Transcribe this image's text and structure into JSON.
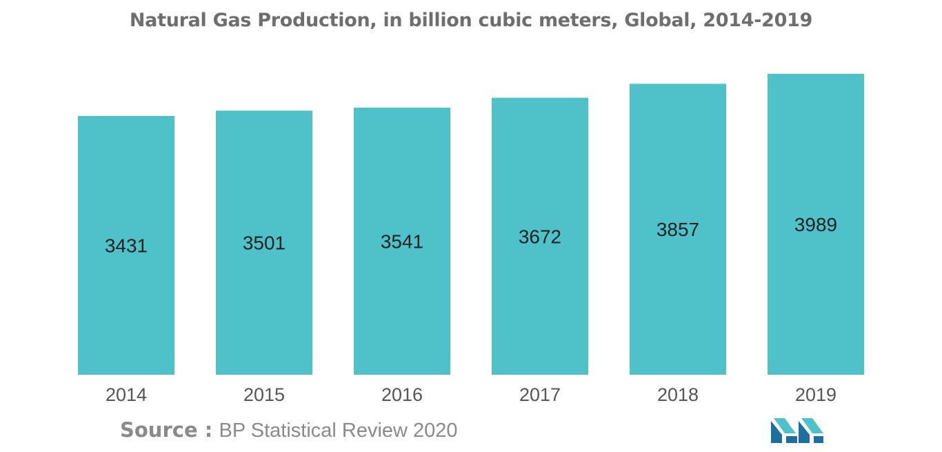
{
  "chart_data": {
    "type": "bar",
    "title": "Natural Gas Production, in billion cubic meters, Global, 2014-2019",
    "categories": [
      "2014",
      "2015",
      "2016",
      "2017",
      "2018",
      "2019"
    ],
    "values": [
      3431,
      3501,
      3541,
      3672,
      3857,
      3989
    ],
    "xlabel": "",
    "ylabel": "",
    "ylim": [
      0,
      4000
    ],
    "grid": false,
    "legend": "none",
    "data_labels": "inside-bar",
    "colors": {
      "bar": "#4fc1c9",
      "label": "#222222",
      "tick": "#555555"
    }
  },
  "source": {
    "label": "Source :",
    "text": "BP Statistical Review 2020"
  },
  "logo": {
    "icon": "mordor-intelligence-logo-icon",
    "colors": [
      "#1e6f9f",
      "#4fc1c9"
    ]
  }
}
